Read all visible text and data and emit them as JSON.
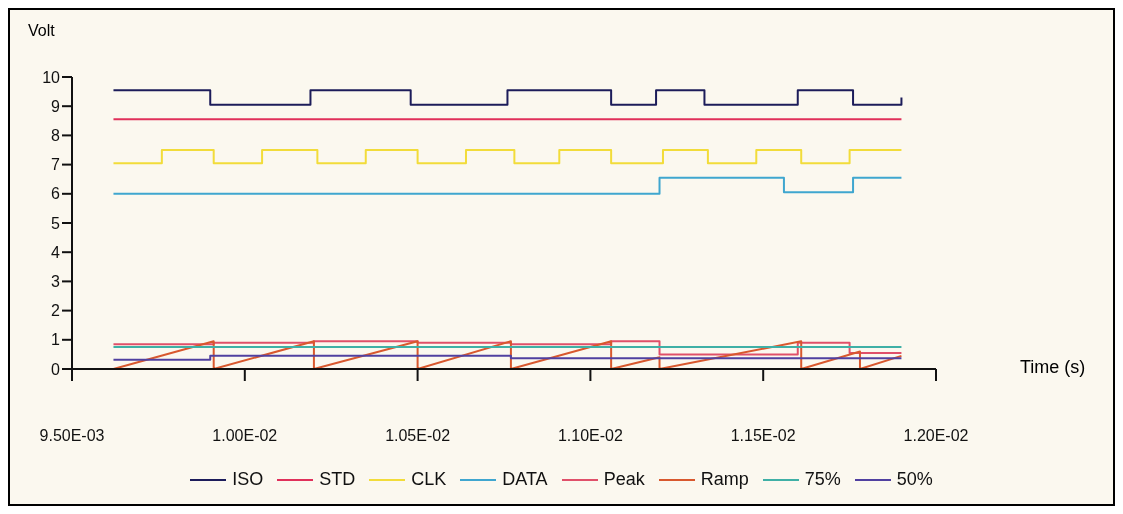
{
  "chart_data": {
    "type": "line",
    "xlabel": "Time (s)",
    "ylabel": "Volt",
    "xlim": [
      0.0095,
      0.012
    ],
    "xticks": [
      {
        "value": 0.0095,
        "label": "9.50E-03"
      },
      {
        "value": 0.01,
        "label": "1.00E-02"
      },
      {
        "value": 0.0105,
        "label": "1.05E-02"
      },
      {
        "value": 0.011,
        "label": "1.10E-02"
      },
      {
        "value": 0.0115,
        "label": "1.15E-02"
      },
      {
        "value": 0.012,
        "label": "1.20E-02"
      }
    ],
    "ylim": [
      0,
      10
    ],
    "yticks": [
      0,
      1,
      2,
      3,
      4,
      5,
      6,
      7,
      8,
      9,
      10
    ],
    "grid": false,
    "legend": "bottom",
    "marker": "none",
    "line_style": "solid",
    "series": [
      {
        "name": "ISO",
        "type": "step",
        "color": "#1c1c5a",
        "x": [
          0.00962,
          0.0099,
          0.01019,
          0.01048,
          0.01076,
          0.01106,
          0.01119,
          0.01133,
          0.0116,
          0.01176,
          0.0119
        ],
        "values": [
          9.55,
          9.05,
          9.55,
          9.05,
          9.55,
          9.05,
          9.55,
          9.05,
          9.55,
          9.05,
          9.3
        ]
      },
      {
        "name": "STD",
        "type": "step",
        "color": "#e0305a",
        "x": [
          0.00962,
          0.0119
        ],
        "values": [
          8.55,
          8.55
        ]
      },
      {
        "name": "CLK",
        "type": "step",
        "color": "#f2dc3a",
        "x": [
          0.00962,
          0.00976,
          0.00991,
          0.01005,
          0.01021,
          0.01035,
          0.0105,
          0.01064,
          0.01078,
          0.01091,
          0.01106,
          0.01121,
          0.01134,
          0.01148,
          0.01161,
          0.01175,
          0.0119
        ],
        "values": [
          7.05,
          7.5,
          7.05,
          7.5,
          7.05,
          7.5,
          7.05,
          7.5,
          7.05,
          7.5,
          7.05,
          7.5,
          7.05,
          7.5,
          7.05,
          7.5,
          7.5
        ]
      },
      {
        "name": "DATA",
        "type": "step",
        "color": "#3fa6cf",
        "x": [
          0.00962,
          0.0112,
          0.01156,
          0.01176,
          0.0119
        ],
        "values": [
          6,
          6.55,
          6.05,
          6.55,
          6.55
        ]
      },
      {
        "name": "Peak",
        "type": "step",
        "color": "#e0506a",
        "x": [
          0.00962,
          0.00991,
          0.0102,
          0.0105,
          0.01077,
          0.01106,
          0.0112,
          0.0116,
          0.01175,
          0.0119
        ],
        "values": [
          0.85,
          0.9,
          0.95,
          0.9,
          0.85,
          0.95,
          0.5,
          0.9,
          0.55,
          0.55
        ]
      },
      {
        "name": "Ramp",
        "type": "line",
        "color": "#d8582e",
        "x": [
          0.00962,
          0.00991,
          0.00991,
          0.0102,
          0.0102,
          0.0105,
          0.0105,
          0.01077,
          0.01077,
          0.01106,
          0.01106,
          0.0112,
          0.0112,
          0.01161,
          0.01161,
          0.01178,
          0.01178,
          0.0119
        ],
        "values": [
          0,
          0.95,
          0,
          0.95,
          0,
          0.95,
          0,
          0.95,
          0,
          0.95,
          0,
          0.4,
          0,
          0.95,
          0,
          0.6,
          0,
          0.45
        ]
      },
      {
        "name": "75%",
        "type": "step",
        "color": "#3fb0a6",
        "x": [
          0.00962,
          0.0119
        ],
        "values": [
          0.75,
          0.75
        ]
      },
      {
        "name": "50%",
        "type": "step",
        "color": "#5040a0",
        "x": [
          0.00962,
          0.0099,
          0.01077,
          0.0119
        ],
        "values": [
          0.32,
          0.45,
          0.37,
          0.37
        ]
      }
    ]
  }
}
